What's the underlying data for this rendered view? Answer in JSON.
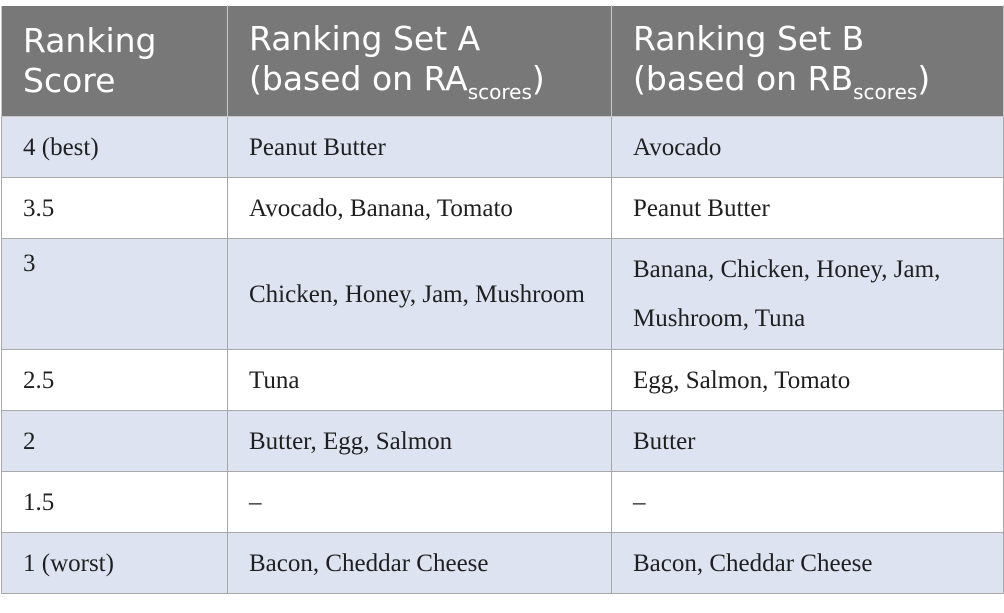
{
  "table": {
    "headers": {
      "score": [
        "Ranking",
        "Score"
      ],
      "set_a": {
        "line1": "Ranking Set A",
        "line2_prefix": "(based on RA",
        "line2_sub": "scores",
        "line2_suffix": ")"
      },
      "set_b": {
        "line1": "Ranking Set B",
        "line2_prefix": "(based on RB",
        "line2_sub": "scores",
        "line2_suffix": ")"
      }
    },
    "rows": [
      {
        "score": "4 (best)",
        "set_a": "Peanut Butter",
        "set_b": "Avocado"
      },
      {
        "score": "3.5",
        "set_a": "Avocado, Banana, Tomato",
        "set_b": "Peanut Butter"
      },
      {
        "score": "3",
        "set_a": "Chicken, Honey, Jam, Mushroom",
        "set_b": "Banana, Chicken, Honey, Jam, Mushroom, Tuna"
      },
      {
        "score": "2.5",
        "set_a": "Tuna",
        "set_b": "Egg, Salmon, Tomato"
      },
      {
        "score": "2",
        "set_a": "Butter, Egg, Salmon",
        "set_b": "Butter"
      },
      {
        "score": "1.5",
        "set_a": "–",
        "set_b": "–"
      },
      {
        "score": "1 (worst)",
        "set_a": "Bacon, Cheddar Cheese",
        "set_b": "Bacon, Cheddar Cheese"
      }
    ]
  },
  "colors": {
    "header_bg": "#787878",
    "header_text": "#ffffff",
    "row_shade": "#dde3f0",
    "row_plain": "#ffffff",
    "border": "#a8a8a8"
  }
}
